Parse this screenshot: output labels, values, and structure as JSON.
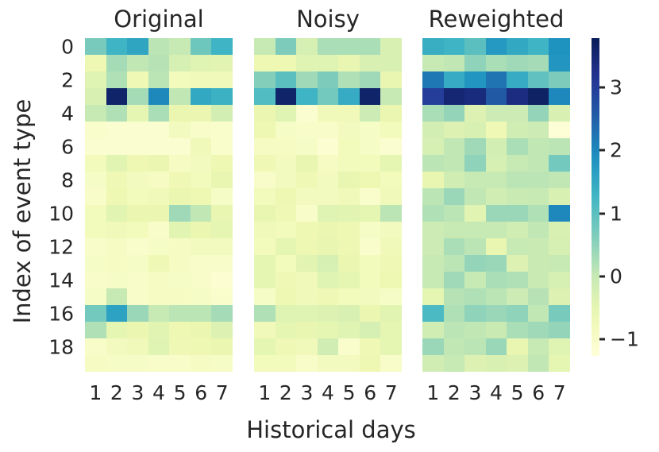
{
  "figure": {
    "background": "#ffffff",
    "text_color": "#262626"
  },
  "chart_data": {
    "type": "heatmap",
    "layout": "three panels sharing one y axis and one colorbar",
    "xlabel": "Historical days",
    "ylabel": "Index of event type",
    "x_ticks": [
      "1",
      "2",
      "3",
      "4",
      "5",
      "6",
      "7"
    ],
    "y_ticks": [
      "0",
      "2",
      "4",
      "6",
      "8",
      "10",
      "12",
      "14",
      "16",
      "18"
    ],
    "n_rows": 20,
    "n_cols": 7,
    "colormap": "YlGnBu",
    "vmin": -1.26,
    "vmax": 3.78,
    "colorbar": {
      "position": "right",
      "ticks": [
        3,
        2,
        1,
        0,
        -1
      ],
      "tick_labels": [
        "3",
        "2",
        "1",
        "0",
        "−1"
      ]
    },
    "panels": [
      {
        "title": "Original",
        "values": [
          [
            0.7,
            1.3,
            1.55,
            0.1,
            0.0,
            0.8,
            1.3
          ],
          [
            -0.65,
            0.3,
            0.05,
            0.15,
            -0.25,
            -0.4,
            -0.45
          ],
          [
            -0.4,
            0.2,
            -0.7,
            0.1,
            -0.8,
            -0.75,
            -0.75
          ],
          [
            -0.3,
            3.6,
            0.3,
            2.0,
            0.05,
            1.5,
            1.35
          ],
          [
            0.0,
            0.2,
            -0.5,
            0.25,
            -0.6,
            -0.6,
            -0.2
          ],
          [
            -1.05,
            -1.1,
            -1.1,
            -1.1,
            -0.85,
            -1.0,
            -1.05
          ],
          [
            -1.1,
            -1.1,
            -1.1,
            -1.1,
            -1.1,
            -0.75,
            -1.05
          ],
          [
            -0.8,
            -0.45,
            -0.65,
            -0.6,
            -0.9,
            -0.85,
            -0.65
          ],
          [
            -0.95,
            -0.7,
            -0.85,
            -0.9,
            -0.7,
            -0.8,
            -0.55
          ],
          [
            -1.0,
            -0.65,
            -0.8,
            -0.75,
            -0.6,
            -0.65,
            -0.95
          ],
          [
            -0.8,
            -0.45,
            -0.6,
            -0.6,
            0.35,
            0.05,
            -0.55
          ],
          [
            -0.8,
            -0.75,
            -0.8,
            -1.0,
            -0.45,
            -0.6,
            -0.5
          ],
          [
            -1.0,
            -0.9,
            -1.05,
            -0.95,
            -0.9,
            -0.85,
            -0.85
          ],
          [
            -0.95,
            -0.9,
            -0.95,
            -0.7,
            -0.9,
            -1.0,
            -1.0
          ],
          [
            -1.0,
            -0.95,
            -1.0,
            -0.9,
            -0.95,
            -1.0,
            -1.15
          ],
          [
            -0.95,
            0.0,
            -1.0,
            -0.9,
            -0.9,
            -0.95,
            -1.05
          ],
          [
            0.75,
            1.6,
            0.4,
            0.0,
            0.1,
            0.1,
            0.3
          ],
          [
            0.2,
            -0.5,
            -0.6,
            -0.45,
            -0.65,
            -0.6,
            -0.35
          ],
          [
            -1.0,
            -0.85,
            -0.75,
            -0.4,
            -0.7,
            -0.65,
            -0.6
          ],
          [
            -0.9,
            -0.95,
            -0.95,
            -1.0,
            -1.0,
            -0.9,
            -0.95
          ]
        ]
      },
      {
        "title": "Noisy",
        "values": [
          [
            0.0,
            0.65,
            -0.25,
            0.25,
            0.25,
            0.25,
            -0.3
          ],
          [
            -0.65,
            -0.65,
            -0.4,
            -0.4,
            -0.55,
            -0.3,
            -0.3
          ],
          [
            0.6,
            1.0,
            0.35,
            0.65,
            0.2,
            0.35,
            -0.55
          ],
          [
            1.1,
            3.6,
            1.3,
            0.75,
            1.45,
            3.6,
            0.0
          ],
          [
            -0.6,
            -0.4,
            -1.1,
            -0.75,
            -0.75,
            -0.1,
            -0.6
          ],
          [
            -0.65,
            -0.95,
            -1.0,
            -1.0,
            -0.85,
            -0.95,
            -0.8
          ],
          [
            -0.9,
            -0.9,
            -0.95,
            -1.15,
            -0.8,
            -0.95,
            -1.1
          ],
          [
            -0.7,
            -0.85,
            -0.55,
            -0.9,
            -0.8,
            -0.8,
            -0.5
          ],
          [
            -1.0,
            -0.85,
            -0.7,
            -0.85,
            -0.55,
            -0.65,
            -0.8
          ],
          [
            -0.8,
            -0.65,
            -0.85,
            -0.85,
            -0.75,
            -1.05,
            -0.75
          ],
          [
            -0.55,
            -0.7,
            -1.0,
            -0.4,
            -0.45,
            -0.5,
            0.1
          ],
          [
            -0.75,
            -0.8,
            -0.65,
            -0.6,
            -0.65,
            -0.95,
            -0.85
          ],
          [
            -0.8,
            -0.5,
            -0.65,
            -0.55,
            -0.65,
            -1.05,
            -0.75
          ],
          [
            -0.5,
            -0.8,
            -0.45,
            -0.25,
            -0.6,
            -0.8,
            -0.7
          ],
          [
            -0.5,
            -0.7,
            -0.75,
            -0.4,
            -0.5,
            -0.8,
            -0.65
          ],
          [
            -0.95,
            -0.65,
            -0.75,
            -0.7,
            -0.8,
            -0.85,
            -0.95
          ],
          [
            0.2,
            -0.4,
            -0.4,
            -0.35,
            -0.3,
            -0.6,
            -0.45
          ],
          [
            -0.75,
            -0.5,
            -0.55,
            -0.5,
            -0.4,
            -0.25,
            -0.5
          ],
          [
            -0.5,
            -0.7,
            -0.75,
            -0.15,
            -1.05,
            -0.7,
            -0.5
          ],
          [
            -0.8,
            -0.8,
            -1.0,
            -0.85,
            -0.85,
            -0.65,
            -1.0
          ]
        ]
      },
      {
        "title": "Reweighted",
        "values": [
          [
            1.4,
            1.3,
            1.0,
            1.75,
            1.5,
            1.3,
            1.85
          ],
          [
            0.0,
            0.05,
            0.5,
            0.25,
            0.35,
            0.3,
            1.8
          ],
          [
            2.2,
            1.45,
            1.8,
            2.25,
            1.45,
            0.95,
            0.65
          ],
          [
            3.0,
            3.5,
            3.4,
            2.6,
            3.35,
            3.65,
            2.0
          ],
          [
            0.25,
            0.45,
            -0.35,
            -0.1,
            -0.1,
            0.45,
            -0.3
          ],
          [
            -0.2,
            -0.35,
            -0.3,
            -0.7,
            -0.15,
            -0.1,
            -1.2
          ],
          [
            -0.25,
            0.05,
            0.35,
            -0.2,
            0.25,
            0.05,
            0.1
          ],
          [
            0.1,
            0.05,
            0.5,
            -0.25,
            0.0,
            0.05,
            0.75
          ],
          [
            -0.55,
            -0.15,
            0.0,
            0.0,
            0.1,
            0.1,
            0.05
          ],
          [
            0.1,
            0.4,
            0.05,
            -0.15,
            -0.05,
            0.0,
            -0.3
          ],
          [
            0.2,
            0.1,
            -0.45,
            0.4,
            0.4,
            0.2,
            2.0
          ],
          [
            -0.1,
            0.0,
            0.0,
            0.0,
            -0.15,
            0.05,
            -0.3
          ],
          [
            -0.1,
            0.25,
            0.1,
            -0.55,
            0.0,
            -0.05,
            -0.25
          ],
          [
            0.0,
            0.1,
            0.45,
            0.4,
            -0.35,
            -0.05,
            0.0
          ],
          [
            0.0,
            0.35,
            0.0,
            0.25,
            0.2,
            -0.05,
            -0.25
          ],
          [
            -0.5,
            0.15,
            0.2,
            0.1,
            -0.1,
            0.15,
            -0.35
          ],
          [
            1.15,
            0.2,
            0.5,
            0.4,
            0.5,
            0.05,
            0.7
          ],
          [
            -0.15,
            0.1,
            0.05,
            -0.05,
            0.25,
            0.35,
            0.45
          ],
          [
            0.4,
            0.05,
            0.1,
            0.4,
            -0.55,
            0.0,
            -0.4
          ],
          [
            -0.15,
            0.0,
            -0.35,
            -0.3,
            -0.35,
            0.05,
            -0.5
          ]
        ]
      }
    ]
  }
}
